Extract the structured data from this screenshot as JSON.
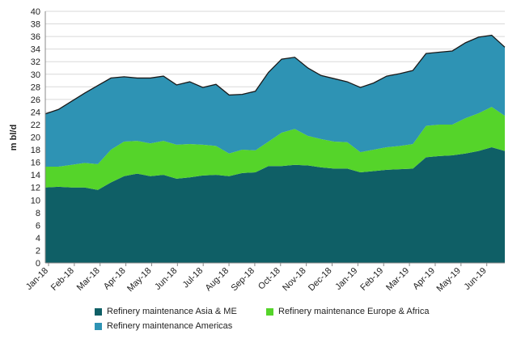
{
  "chart_data": {
    "type": "area",
    "stacked": true,
    "title": "",
    "xlabel": "",
    "ylabel": "m bl/d",
    "ylim": [
      0,
      40
    ],
    "yticks": [
      0,
      2,
      4,
      6,
      8,
      10,
      12,
      14,
      16,
      18,
      20,
      22,
      24,
      26,
      28,
      30,
      32,
      34,
      36,
      38,
      40
    ],
    "grid": "horizontal",
    "legend_position": "bottom",
    "x_tick_labels": [
      "Jan-18",
      "Feb-18",
      "Mar-18",
      "Apr-18",
      "May-18",
      "Jun-18",
      "Jul-18",
      "Aug-18",
      "Sep-18",
      "Oct-18",
      "Nov-18",
      "Dec-18",
      "Jan-19",
      "Feb-19",
      "Mar-19",
      "Apr-19",
      "May-19",
      "Jun-19"
    ],
    "x": [
      "Jan-18",
      "Jan-18 (mid)",
      "Feb-18",
      "Feb-18 (mid)",
      "Mar-18",
      "Mar-18 (mid)",
      "Apr-18",
      "Apr-18 (mid)",
      "May-18",
      "May-18 (mid)",
      "Jun-18",
      "Jun-18 (mid)",
      "Jul-18",
      "Jul-18 (mid)",
      "Aug-18",
      "Aug-18 (mid)",
      "Sep-18",
      "Sep-18 (mid)",
      "Oct-18",
      "Oct-18 (mid)",
      "Nov-18",
      "Nov-18 (mid)",
      "Dec-18",
      "Dec-18 (mid)",
      "Jan-19",
      "Jan-19 (mid)",
      "Feb-19",
      "Feb-19 (mid)",
      "Mar-19",
      "Mar-19 (mid)",
      "Apr-19",
      "Apr-19 (mid)",
      "May-19",
      "May-19 (mid)",
      "Jun-19",
      "Jun-19 (late)"
    ],
    "series": [
      {
        "name": "Refinery maintenance Asia & ME",
        "color": "#0f5f66",
        "values": [
          12.0,
          12.1,
          12.0,
          12.0,
          11.6,
          12.8,
          13.8,
          14.2,
          13.8,
          14.0,
          13.4,
          13.6,
          13.9,
          14.0,
          13.8,
          14.3,
          14.4,
          15.4,
          15.4,
          15.6,
          15.5,
          15.2,
          15.0,
          15.0,
          14.4,
          14.6,
          14.8,
          14.9,
          15.0,
          16.8,
          17.0,
          17.1,
          17.4,
          17.8,
          18.4,
          17.8
        ]
      },
      {
        "name": "Refinery maintenance Europe & Africa",
        "color": "#55d42a",
        "values": [
          3.3,
          3.2,
          3.6,
          3.9,
          4.1,
          5.2,
          5.5,
          5.2,
          5.2,
          5.4,
          5.4,
          5.3,
          4.9,
          4.6,
          3.6,
          3.7,
          3.5,
          3.9,
          5.3,
          5.7,
          4.7,
          4.5,
          4.3,
          4.2,
          3.2,
          3.4,
          3.6,
          3.7,
          3.9,
          5.0,
          5.0,
          4.9,
          5.6,
          6.0,
          6.4,
          5.6
        ]
      },
      {
        "name": "Refinery maintenance Americas",
        "color": "#2e93b4",
        "values": [
          8.4,
          9.1,
          10.1,
          11.1,
          12.5,
          11.4,
          10.3,
          10.0,
          10.4,
          10.3,
          9.5,
          9.9,
          9.1,
          9.8,
          9.3,
          8.8,
          9.4,
          11.0,
          11.7,
          11.4,
          10.8,
          10.1,
          10.0,
          9.6,
          10.3,
          10.6,
          11.3,
          11.5,
          11.7,
          11.5,
          11.5,
          11.7,
          12.0,
          12.1,
          11.4,
          10.9
        ]
      }
    ]
  },
  "legend": {
    "items": [
      {
        "label": "Refinery maintenance Asia & ME",
        "color": "#0f5f66"
      },
      {
        "label": "Refinery maintenance Europe & Africa",
        "color": "#55d42a"
      },
      {
        "label": "Refinery maintenance Americas",
        "color": "#2e93b4"
      }
    ]
  }
}
